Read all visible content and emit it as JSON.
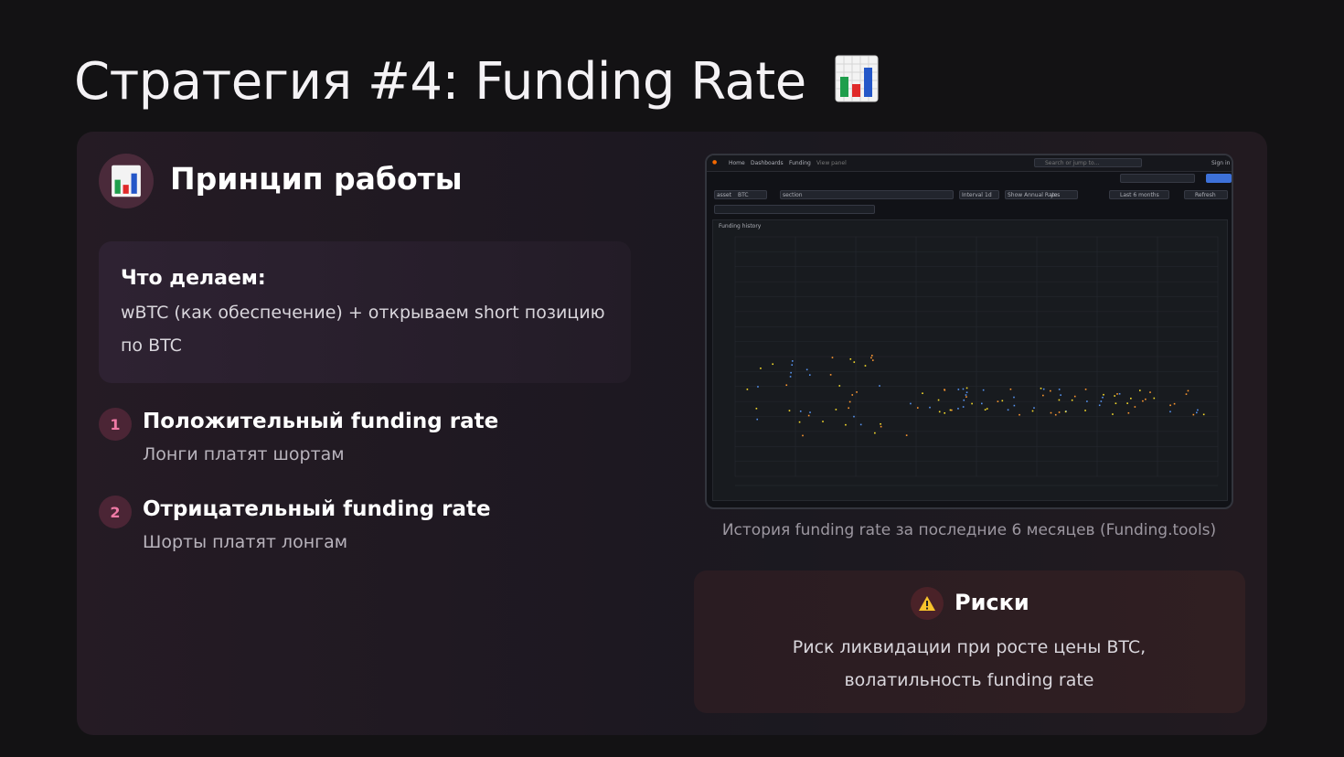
{
  "slide": {
    "title": "Стратегия #4: Funding Rate",
    "title_icon": "bar-chart-emoji"
  },
  "principle": {
    "icon": "bar-chart-emoji",
    "title": "Принцип работы",
    "what_heading": "Что делаем:",
    "what_text": "wBTC (как обеспечение) + открываем short позицию по BTC"
  },
  "items": [
    {
      "num": "1",
      "title": "Положительный funding rate",
      "subtitle": "Лонги платят шортам"
    },
    {
      "num": "2",
      "title": "Отрицательный funding rate",
      "subtitle": "Шорты платят лонгам"
    }
  ],
  "screenshot": {
    "breadcrumb": {
      "home": "Home",
      "dashboards": "Dashboards",
      "funding": "Funding",
      "view": "View panel"
    },
    "search_placeholder": "Search or jump to...",
    "sign_in": "Sign in",
    "refresh": "Refresh",
    "time_range": "Last 6 months",
    "filters": {
      "asset": "asset",
      "btc": "BTC",
      "section": "section",
      "interval": "Interval",
      "interval_val": "1d",
      "annual": "Show Annual Rate",
      "annual_val": "yes"
    },
    "panel_title": "Funding history",
    "chart_data": {
      "type": "line",
      "title": "Funding history",
      "note": "tiny unreadable axis/legend labels; series shown as multi-colored lines and dots",
      "series": [
        {
          "color": "#5794f2"
        },
        {
          "color": "#ff9830"
        },
        {
          "color": "#fade2a"
        },
        {
          "color": "#b877d9"
        }
      ]
    }
  },
  "caption": "История funding rate за последние 6 месяцев (Funding.tools)",
  "risks": {
    "icon": "warning-icon",
    "title": "Риски",
    "text": "Риск ликвидации при росте цены BTC, волатильность funding rate"
  },
  "colors": {
    "accent": "#f07aa6",
    "background": "#131214"
  }
}
